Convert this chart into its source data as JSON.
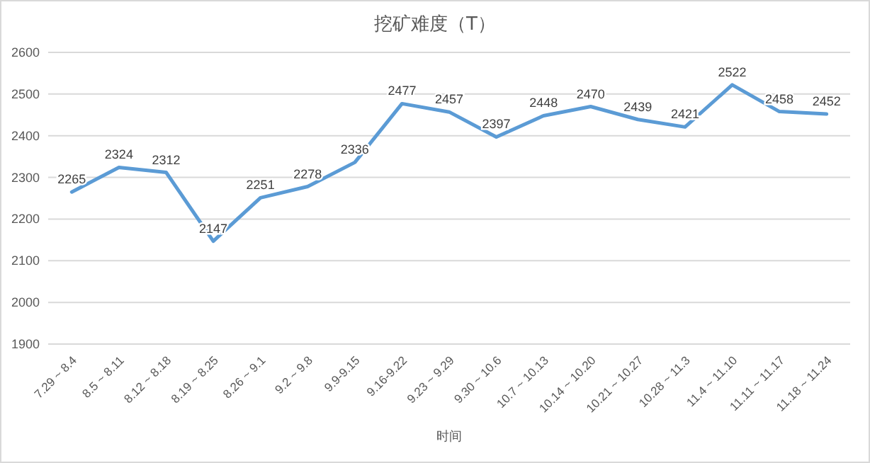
{
  "chart_data": {
    "type": "line",
    "title": "挖矿难度（T）",
    "xlabel": "时间",
    "categories": [
      "7.29 ~ 8.4",
      "8.5 ~ 8.11",
      "8.12 ~ 8.18",
      "8.19 ~ 8.25",
      "8.26 ~ 9.1",
      "9.2 ~ 9.8",
      "9.9-9.15",
      "9.16-9.22",
      "9.23 ~ 9.29",
      "9.30 ~ 10.6",
      "10.7 ~ 10.13",
      "10.14 ~ 10.20",
      "10.21 ~ 10.27",
      "10.28 ~ 11.3",
      "11.4 ~ 11.10",
      "11.11 ~ 11.17",
      "11.18 ~ 11.24"
    ],
    "series": [
      {
        "color": "#5b9bd5",
        "values": [
          2265,
          2324,
          2312,
          2147,
          2251,
          2278,
          2336,
          2477,
          2457,
          2397,
          2448,
          2470,
          2439,
          2421,
          2522,
          2458,
          2452
        ]
      }
    ],
    "ylim": [
      1900,
      2600
    ],
    "yticks": [
      1900,
      2000,
      2100,
      2200,
      2300,
      2400,
      2500,
      2600
    ],
    "grid": "y",
    "data_labels": true,
    "marker": "none",
    "line_style": "solid"
  }
}
